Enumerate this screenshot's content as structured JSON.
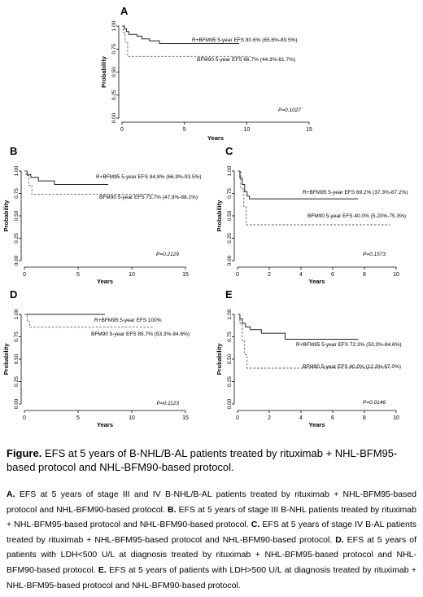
{
  "chart_data": [
    {
      "type": "line",
      "panel_label": "A",
      "xlabel": "Years",
      "ylabel": "Probability",
      "xlim": [
        0,
        15
      ],
      "ylim": [
        0,
        1
      ],
      "x_ticks": [
        0,
        5,
        10,
        15
      ],
      "y_ticks": [
        "0.00",
        "0.25",
        "0.50",
        "0.75",
        "1.00"
      ],
      "p_value": "P=0.1027",
      "series": [
        {
          "label": "R+BFM95 5-year EFS 80.6% (65.6%-89.5%)",
          "style": "solid",
          "x": [
            0,
            0.2,
            0.35,
            0.55,
            1.2,
            1.6,
            2.2,
            3,
            7.5,
            9.4
          ],
          "y": [
            1,
            0.97,
            0.94,
            0.91,
            0.89,
            0.86,
            0.84,
            0.81,
            0.81,
            0.81
          ]
        },
        {
          "label": "BFM90 5-year EFS 66.7% (44.3%-81.7%)",
          "style": "dashed",
          "x": [
            0,
            0.1,
            0.25,
            0.45,
            10.3
          ],
          "y": [
            1,
            0.93,
            0.83,
            0.67,
            0.67
          ]
        }
      ]
    },
    {
      "type": "line",
      "panel_label": "B",
      "xlabel": "Years",
      "ylabel": "Probability",
      "xlim": [
        0,
        15
      ],
      "ylim": [
        0,
        1
      ],
      "x_ticks": [
        0,
        5,
        10,
        15
      ],
      "y_ticks": [
        "0.00",
        "0.25",
        "0.50",
        "0.75",
        "1.00"
      ],
      "p_value": "P=0.2129",
      "series": [
        {
          "label": "R+BFM95 5-year EFS 84.8% (66.9%-93.5%)",
          "style": "solid",
          "x": [
            0,
            0.25,
            0.6,
            1.3,
            2.8,
            7.8
          ],
          "y": [
            1,
            0.96,
            0.93,
            0.89,
            0.85,
            0.85
          ]
        },
        {
          "label": "BFM90 5-year EFS 73.7% (47.9%-88.1%)",
          "style": "dashed",
          "x": [
            0,
            0.15,
            0.4,
            0.7,
            12
          ],
          "y": [
            1,
            0.95,
            0.84,
            0.74,
            0.74
          ]
        }
      ]
    },
    {
      "type": "line",
      "panel_label": "C",
      "xlabel": "Years",
      "ylabel": "Probability",
      "xlim": [
        0,
        10
      ],
      "ylim": [
        0,
        1
      ],
      "x_ticks": [
        0,
        2,
        4,
        6,
        8,
        10
      ],
      "y_ticks": [
        "0.00",
        "0.25",
        "0.50",
        "0.75",
        "1.00"
      ],
      "p_value": "P=0.1573",
      "series": [
        {
          "label": "R+BFM95 5-year EFS 69.2% (37.3%-87.2%)",
          "style": "solid",
          "x": [
            0,
            0.15,
            0.3,
            0.45,
            0.6,
            0.75,
            7.6
          ],
          "y": [
            1,
            0.92,
            0.85,
            0.77,
            0.72,
            0.69,
            0.69
          ]
        },
        {
          "label": "BFM90 5-year EFS 40.0% (5.20%-75.3%)",
          "style": "dashed",
          "x": [
            0,
            0.2,
            0.4,
            0.55,
            9.6
          ],
          "y": [
            1,
            0.8,
            0.6,
            0.4,
            0.4
          ]
        }
      ]
    },
    {
      "type": "line",
      "panel_label": "D",
      "xlabel": "Years",
      "ylabel": "Probability",
      "xlim": [
        0,
        15
      ],
      "ylim": [
        0,
        1
      ],
      "x_ticks": [
        0,
        5,
        10,
        15
      ],
      "y_ticks": [
        "0.00",
        "0.25",
        "0.50",
        "0.75",
        "1.00"
      ],
      "p_value": "P=0.1123",
      "series": [
        {
          "label": "R+BFM95 5-year EFS 100%",
          "style": "solid",
          "x": [
            0,
            7.5
          ],
          "y": [
            1,
            1
          ]
        },
        {
          "label": "BFM90 5-year EFS 85.7% (53.3%-84.6%)",
          "style": "dashed",
          "x": [
            0,
            0.25,
            0.5,
            12
          ],
          "y": [
            1,
            0.92,
            0.857,
            0.857
          ]
        }
      ]
    },
    {
      "type": "line",
      "panel_label": "E",
      "xlabel": "Years",
      "ylabel": "Probability",
      "xlim": [
        0,
        10
      ],
      "ylim": [
        0,
        1
      ],
      "x_ticks": [
        0,
        2,
        4,
        6,
        8,
        10
      ],
      "y_ticks": [
        "0.00",
        "0.25",
        "0.50",
        "0.75",
        "1.00"
      ],
      "p_value": "P=0.0146",
      "series": [
        {
          "label": "R+BFM95 5-year EFS 72.3% (53.3%-84.6%)",
          "style": "solid",
          "x": [
            0,
            0.15,
            0.3,
            0.5,
            0.8,
            1.5,
            3.0,
            7.6
          ],
          "y": [
            1,
            0.95,
            0.9,
            0.86,
            0.83,
            0.79,
            0.723,
            0.723
          ]
        },
        {
          "label": "BFM90 5-year EFS 40.0% (12.3%-67.0%)",
          "style": "dashed",
          "x": [
            0,
            0.15,
            0.3,
            0.45,
            0.6,
            9.6
          ],
          "y": [
            1,
            0.9,
            0.7,
            0.55,
            0.4,
            0.4
          ]
        }
      ]
    }
  ],
  "caption": {
    "title_bold": "Figure.",
    "title_text": " EFS at 5 years of B-NHL/B-AL patients treated by rituximab + NHL-BFM95-based protocol and NHL-BFM90-based protocol.",
    "parts": [
      {
        "label": "A.",
        "text": " EFS at 5 years of stage III and IV B-NHL/B-AL patients treated by rituximab + NHL-BFM95-based protocol and NHL-BFM90-based protocol. "
      },
      {
        "label": "B.",
        "text": " EFS at 5 years of stage III B-NHL patients treated by rituximab + NHL-BFM95-based protocol and NHL-BFM90-based protocol. "
      },
      {
        "label": "C.",
        "text": " EFS at 5 years of stage IV B-AL patients treated by rituximab + NHL-BFM95-based protocol and NHL-BFM90-based protocol. "
      },
      {
        "label": "D.",
        "text": " EFS at 5 years of patients with LDH<500 U/L at diagnosis treated by rituximab + NHL-BFM95-based protocol and NHL-BFM90-based protocol. "
      },
      {
        "label": "E.",
        "text": " EFS at 5 years of patients with LDH>500 U/L at diagnosis treated by rituximab + NHL-BFM95-based protocol and NHL-BFM90-based protocol."
      }
    ]
  }
}
